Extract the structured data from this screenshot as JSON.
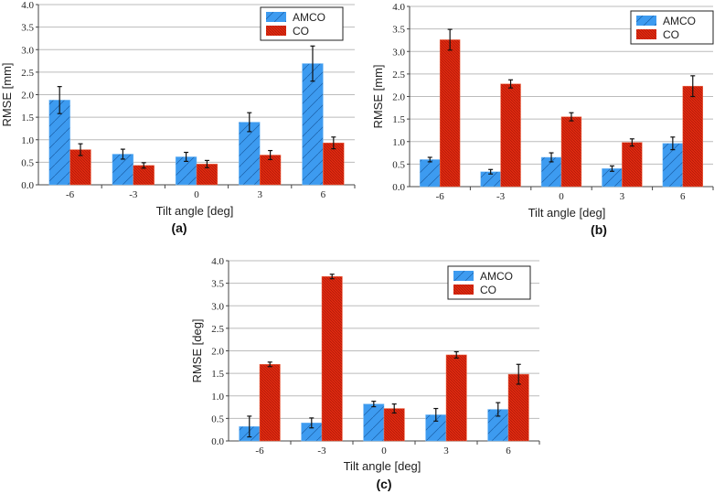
{
  "colors": {
    "amco": "#3d9bf0",
    "co": "#e02a10",
    "grid": "#bbbbbb"
  },
  "chart_data": [
    {
      "type": "bar",
      "panel": "(a)",
      "categories": [
        "-6",
        "-3",
        "0",
        "3",
        "6"
      ],
      "xlabel": "Tilt angle [deg]",
      "ylabel": "RMSE [mm]",
      "ylim": [
        0,
        4
      ],
      "yticks": [
        "0.0",
        "0.5",
        "1.0",
        "1.5",
        "2.0",
        "2.5",
        "3.0",
        "3.5",
        "4.0"
      ],
      "grid": true,
      "legend_position": "top-right",
      "series": [
        {
          "name": "AMCO",
          "values": [
            1.88,
            0.68,
            0.62,
            1.39,
            2.69
          ],
          "errors": [
            0.3,
            0.11,
            0.1,
            0.21,
            0.39
          ]
        },
        {
          "name": "CO",
          "values": [
            0.78,
            0.43,
            0.46,
            0.66,
            0.93
          ],
          "errors": [
            0.13,
            0.06,
            0.08,
            0.1,
            0.13
          ]
        }
      ]
    },
    {
      "type": "bar",
      "panel": "(b)",
      "categories": [
        "-6",
        "-3",
        "0",
        "3",
        "6"
      ],
      "xlabel": "Tilt angle [deg]",
      "ylabel": "RMSE [mm]",
      "ylim": [
        0,
        4
      ],
      "yticks": [
        "0.0",
        "0.5",
        "1.0",
        "1.5",
        "2.0",
        "2.5",
        "3.0",
        "3.5",
        "4.0"
      ],
      "grid": true,
      "legend_position": "top-right",
      "series": [
        {
          "name": "AMCO",
          "values": [
            0.6,
            0.33,
            0.65,
            0.4,
            0.96
          ],
          "errors": [
            0.05,
            0.05,
            0.1,
            0.06,
            0.14
          ]
        },
        {
          "name": "CO",
          "values": [
            3.26,
            2.28,
            1.55,
            0.98,
            2.23
          ],
          "errors": [
            0.23,
            0.09,
            0.09,
            0.08,
            0.23
          ]
        }
      ]
    },
    {
      "type": "bar",
      "panel": "(c)",
      "categories": [
        "-6",
        "-3",
        "0",
        "3",
        "6"
      ],
      "xlabel": "Tilt angle [deg]",
      "ylabel": "RMSE [deg]",
      "ylim": [
        0,
        4
      ],
      "yticks": [
        "0.0",
        "0.5",
        "1.0",
        "1.5",
        "2.0",
        "2.5",
        "3.0",
        "3.5",
        "4.0"
      ],
      "grid": true,
      "legend_position": "top-right",
      "series": [
        {
          "name": "AMCO",
          "values": [
            0.32,
            0.4,
            0.82,
            0.58,
            0.7
          ],
          "errors": [
            0.23,
            0.11,
            0.06,
            0.14,
            0.15
          ]
        },
        {
          "name": "CO",
          "values": [
            1.7,
            3.65,
            0.72,
            1.91,
            1.48
          ],
          "errors": [
            0.05,
            0.05,
            0.1,
            0.07,
            0.22
          ]
        }
      ]
    }
  ]
}
